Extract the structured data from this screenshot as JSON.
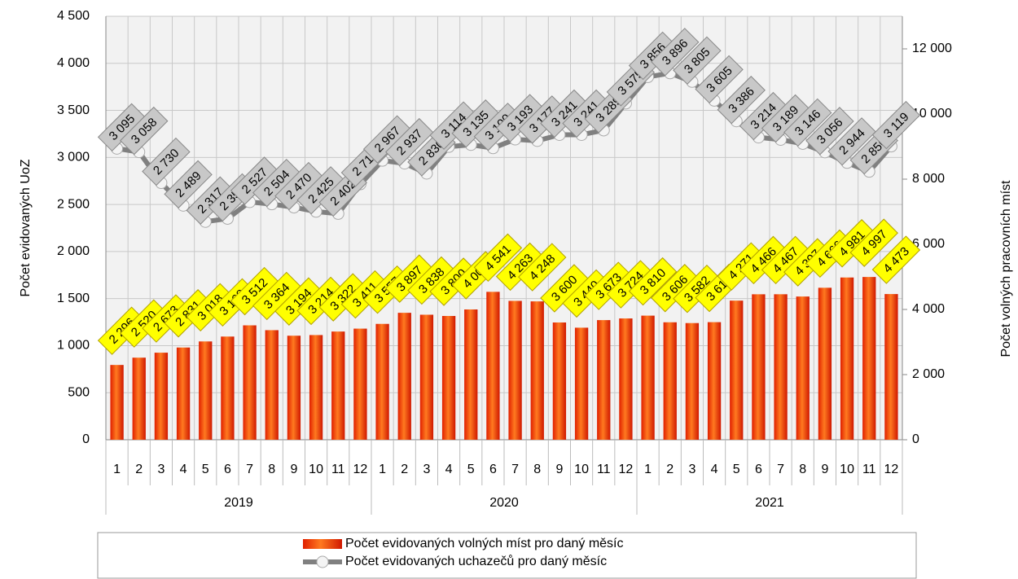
{
  "chart_data": {
    "type": "bar-line",
    "categories": [
      "1",
      "2",
      "3",
      "4",
      "5",
      "6",
      "7",
      "8",
      "9",
      "10",
      "11",
      "12",
      "1",
      "2",
      "3",
      "4",
      "5",
      "6",
      "7",
      "8",
      "9",
      "10",
      "11",
      "12",
      "1",
      "2",
      "3",
      "4",
      "5",
      "6",
      "7",
      "8",
      "9",
      "10",
      "11",
      "12"
    ],
    "category_groups": [
      "2019",
      "2020",
      "2021"
    ],
    "y_label": "Počet evidovaných UoZ",
    "y2_label": "Počet volných pracovních míst",
    "ylim": [
      0,
      4500
    ],
    "yticks": [
      0,
      500,
      {
        "value": 1000,
        "label": "1 000"
      },
      {
        "value": 1500,
        "label": "1 500"
      },
      {
        "value": 2000,
        "label": "2 000"
      },
      {
        "value": 2500,
        "label": "2 500"
      },
      {
        "value": 3000,
        "label": "3 000"
      },
      {
        "value": 3500,
        "label": "3 500"
      },
      {
        "value": 4000,
        "label": "4 000"
      },
      {
        "value": 4500,
        "label": "4 500"
      }
    ],
    "y2lim": [
      0,
      13000
    ],
    "y2ticks": [
      0,
      {
        "value": 2000,
        "label": "2 000"
      },
      {
        "value": 4000,
        "label": "4 000"
      },
      {
        "value": 6000,
        "label": "6 000"
      },
      {
        "value": 8000,
        "label": "8 000"
      },
      {
        "value": 10000,
        "label": "10 000"
      },
      {
        "value": 12000,
        "label": "12 000"
      }
    ],
    "grid": true,
    "legend": "bottom",
    "series": [
      {
        "name": "Počet evidovaných volných míst pro daný měsíc",
        "type": "bar",
        "axis": "y2",
        "color": "#ff4a00",
        "values": [
          2296,
          2520,
          2673,
          2831,
          3018,
          3168,
          3512,
          3364,
          3194,
          3214,
          3322,
          3411,
          3557,
          3897,
          3838,
          3800,
          4000,
          4541,
          4263,
          4248,
          3600,
          3440,
          3673,
          3724,
          3810,
          3606,
          3582,
          3610,
          4271,
          4466,
          4467,
          4397,
          4666,
          4981,
          4997,
          4473
        ],
        "value_labels": [
          "2 296",
          "2 520",
          "2 673",
          "2 831",
          "3 018",
          "3 168",
          "3 512",
          "3 364",
          "3 194",
          "3 214",
          "3 322",
          "3 411",
          "3 557",
          "3 897",
          "3 838",
          "3 800",
          "4 000",
          "4 541",
          "4 263",
          "4 248",
          "3 600",
          "3 440",
          "3 673",
          "3 724",
          "3 810",
          "3 606",
          "3 582",
          "3 610",
          "4 271",
          "4 466",
          "4 467",
          "4 397",
          "4 666",
          "4 981",
          "4 997",
          "4 473"
        ]
      },
      {
        "name": "Počet evidovaných uchazečů pro daný měsíc",
        "type": "line",
        "axis": "y",
        "color": "#808080",
        "values": [
          3095,
          3058,
          2730,
          2489,
          2317,
          2350,
          2527,
          2504,
          2470,
          2425,
          2402,
          2717,
          2967,
          2937,
          2830,
          3114,
          3135,
          3100,
          3193,
          3177,
          3241,
          3241,
          3289,
          3575,
          3856,
          3896,
          3805,
          3605,
          3386,
          3214,
          3189,
          3146,
          3056,
          2944,
          2850,
          3119
        ],
        "value_labels": [
          "3 095",
          "3 058",
          "2 730",
          "2 489",
          "2 317",
          "2 350",
          "2 527",
          "2 504",
          "2 470",
          "2 425",
          "2 402",
          "2 717",
          "2 967",
          "2 937",
          "2 830",
          "3 114",
          "3 135",
          "3 100",
          "3 193",
          "3 177",
          "3 241",
          "3 241",
          "3 289",
          "3 575",
          "3 856",
          "3 896",
          "3 805",
          "3 605",
          "3 386",
          "3 214",
          "3 189",
          "3 146",
          "3 056",
          "2 944",
          "2 850",
          "3 119"
        ]
      }
    ]
  }
}
